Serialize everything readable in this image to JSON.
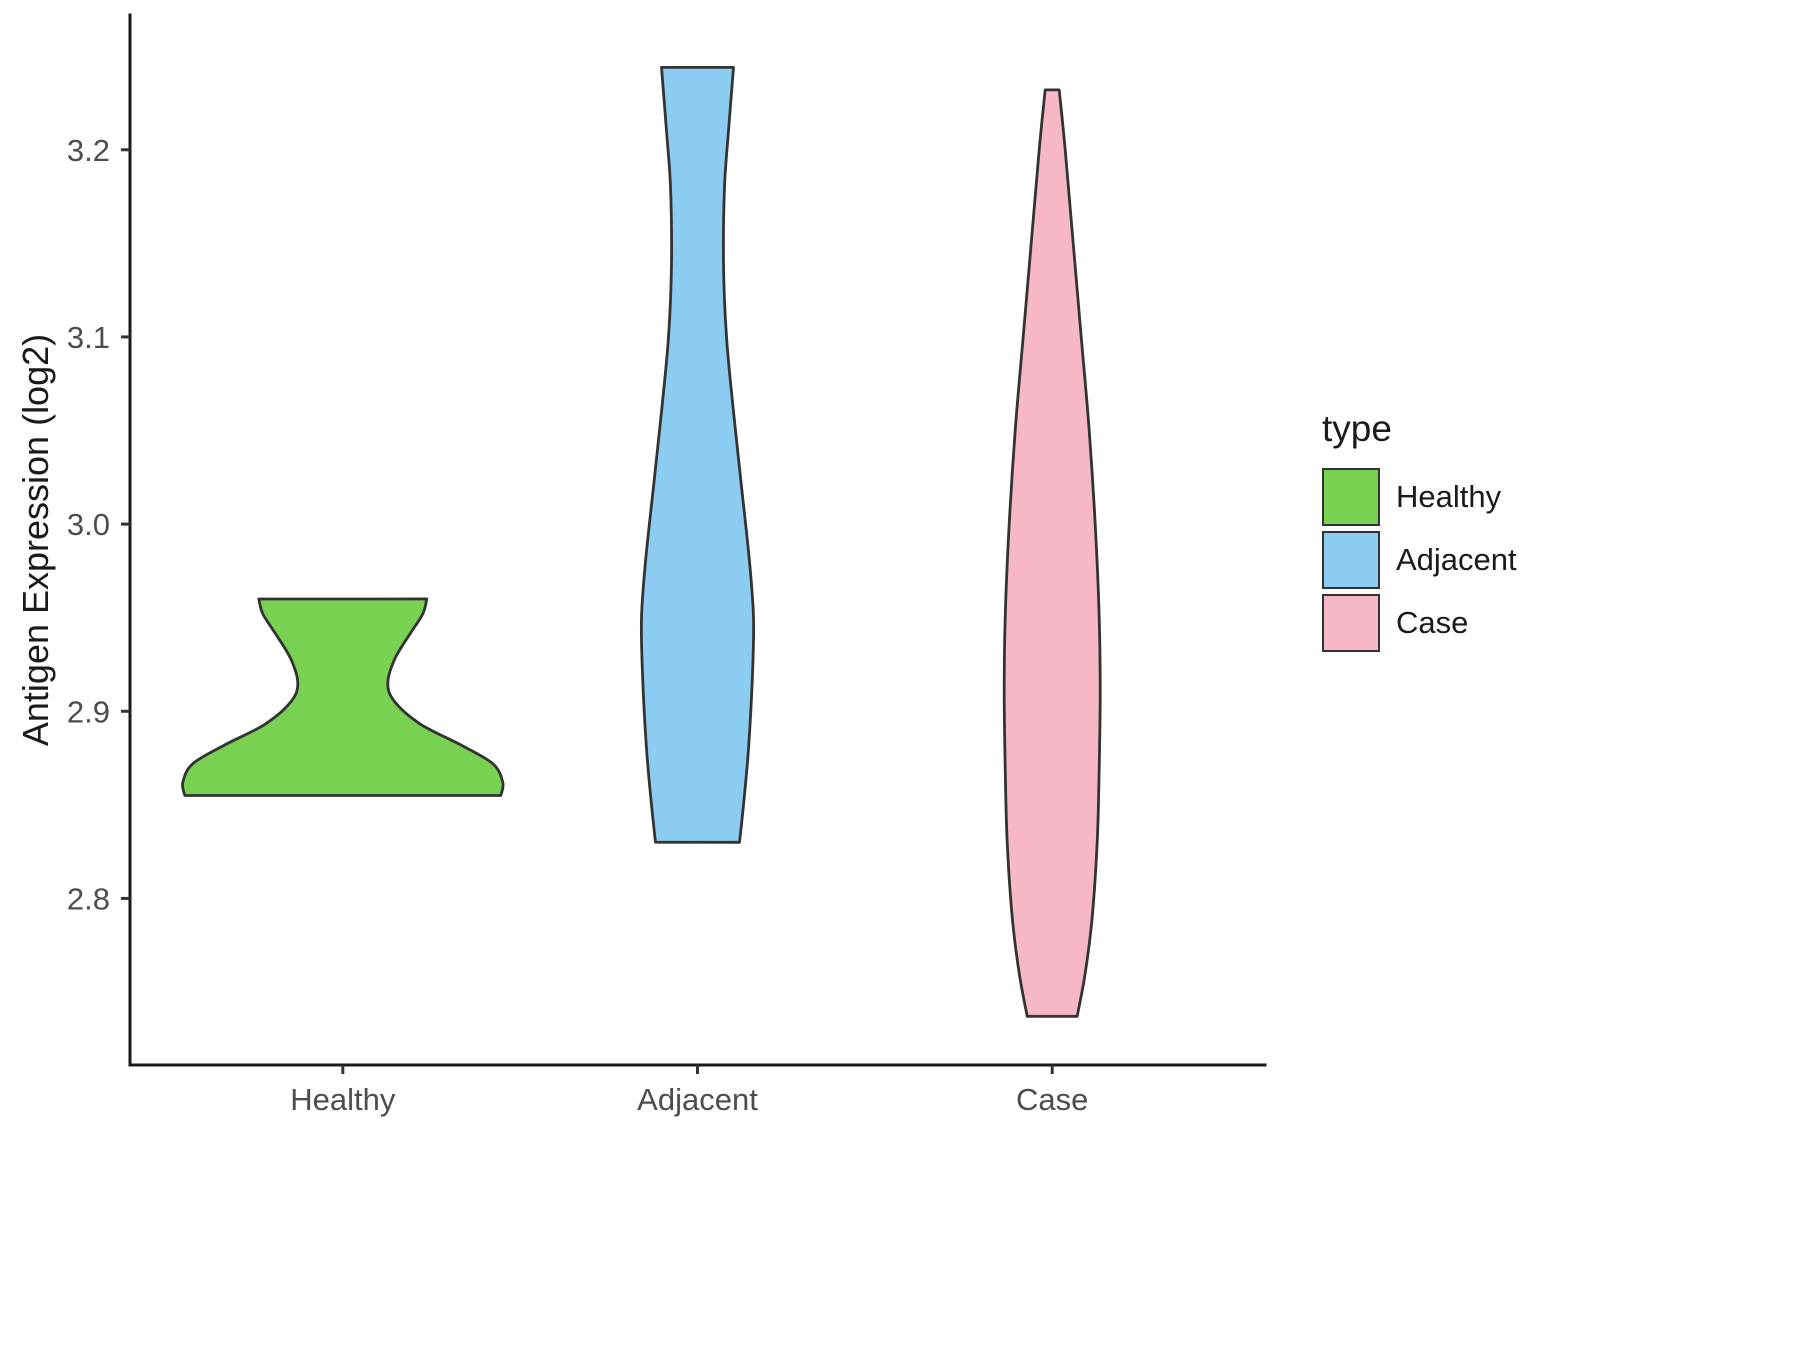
{
  "chart_data": {
    "type": "violin",
    "title": "",
    "xlabel": "",
    "ylabel": "Antigen Expression (log2)",
    "categories": [
      "Healthy",
      "Adjacent",
      "Case"
    ],
    "ylim": [
      2.711,
      3.272
    ],
    "grid": false,
    "legend_position": "right",
    "y_ticks": [
      {
        "value": 2.8,
        "label": "2.8"
      },
      {
        "value": 2.9,
        "label": "2.9"
      },
      {
        "value": 3.0,
        "label": "3.0"
      },
      {
        "value": 3.1,
        "label": "3.1"
      },
      {
        "value": 3.2,
        "label": "3.2"
      }
    ],
    "legend": {
      "title": "type",
      "entries": [
        {
          "label": "Healthy",
          "color": "#79D152"
        },
        {
          "label": "Adjacent",
          "color": "#8CCCF0"
        },
        {
          "label": "Case",
          "color": "#F6B8C6"
        }
      ]
    },
    "series": [
      {
        "name": "Healthy",
        "color": "#79D152",
        "range": [
          2.855,
          2.96
        ],
        "outline": [
          [
            2.855,
            158
          ],
          [
            2.862,
            160
          ],
          [
            2.872,
            150
          ],
          [
            2.882,
            118
          ],
          [
            2.893,
            78
          ],
          [
            2.905,
            52
          ],
          [
            2.915,
            45
          ],
          [
            2.928,
            52
          ],
          [
            2.942,
            68
          ],
          [
            2.952,
            80
          ],
          [
            2.96,
            84
          ]
        ]
      },
      {
        "name": "Adjacent",
        "color": "#8CCCF0",
        "range": [
          2.83,
          3.244
        ],
        "outline": [
          [
            2.83,
            42
          ],
          [
            2.85,
            46
          ],
          [
            2.88,
            51
          ],
          [
            2.92,
            55
          ],
          [
            2.95,
            56
          ],
          [
            2.98,
            52
          ],
          [
            3.02,
            44
          ],
          [
            3.06,
            36
          ],
          [
            3.1,
            29
          ],
          [
            3.14,
            26
          ],
          [
            3.18,
            27
          ],
          [
            3.21,
            31
          ],
          [
            3.244,
            36
          ]
        ]
      },
      {
        "name": "Case",
        "color": "#F6B8C6",
        "range": [
          2.737,
          3.232
        ],
        "outline": [
          [
            2.737,
            25
          ],
          [
            2.76,
            33
          ],
          [
            2.79,
            40
          ],
          [
            2.83,
            45
          ],
          [
            2.87,
            47
          ],
          [
            2.91,
            48
          ],
          [
            2.95,
            47
          ],
          [
            3.0,
            43
          ],
          [
            3.05,
            37
          ],
          [
            3.1,
            29
          ],
          [
            3.15,
            21
          ],
          [
            3.2,
            13
          ],
          [
            3.232,
            7
          ]
        ]
      }
    ],
    "style": {
      "axis_color": "#1a1a1a",
      "violin_stroke": "#333333",
      "tick_color": "#333333",
      "background": "#ffffff"
    }
  }
}
